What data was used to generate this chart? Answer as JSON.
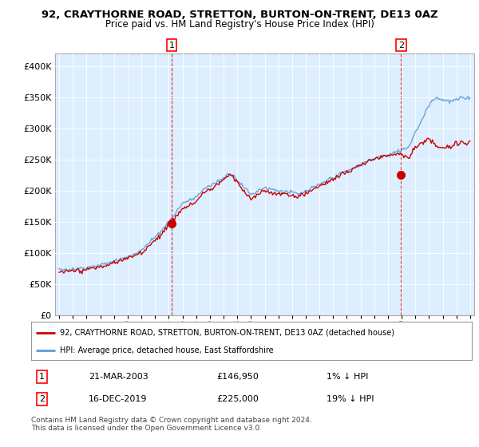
{
  "title": "92, CRAYTHORNE ROAD, STRETTON, BURTON-ON-TRENT, DE13 0AZ",
  "subtitle": "Price paid vs. HM Land Registry's House Price Index (HPI)",
  "hpi_label": "HPI: Average price, detached house, East Staffordshire",
  "price_label": "92, CRAYTHORNE ROAD, STRETTON, BURTON-ON-TRENT, DE13 0AZ (detached house)",
  "transaction1_date": "21-MAR-2003",
  "transaction1_price": 146950,
  "transaction1_hpi_diff": "1% ↓ HPI",
  "transaction2_date": "16-DEC-2019",
  "transaction2_price": 225000,
  "transaction2_hpi_diff": "19% ↓ HPI",
  "footer": "Contains HM Land Registry data © Crown copyright and database right 2024.\nThis data is licensed under the Open Government Licence v3.0.",
  "ylim": [
    0,
    420000
  ],
  "yticks": [
    0,
    50000,
    100000,
    150000,
    200000,
    250000,
    300000,
    350000,
    400000
  ],
  "hpi_color": "#5b9bd5",
  "price_color": "#cc0000",
  "vline_color": "#cc0000",
  "bg_color": "#ffffff",
  "chart_bg_color": "#ddeeff",
  "grid_color": "#ffffff"
}
